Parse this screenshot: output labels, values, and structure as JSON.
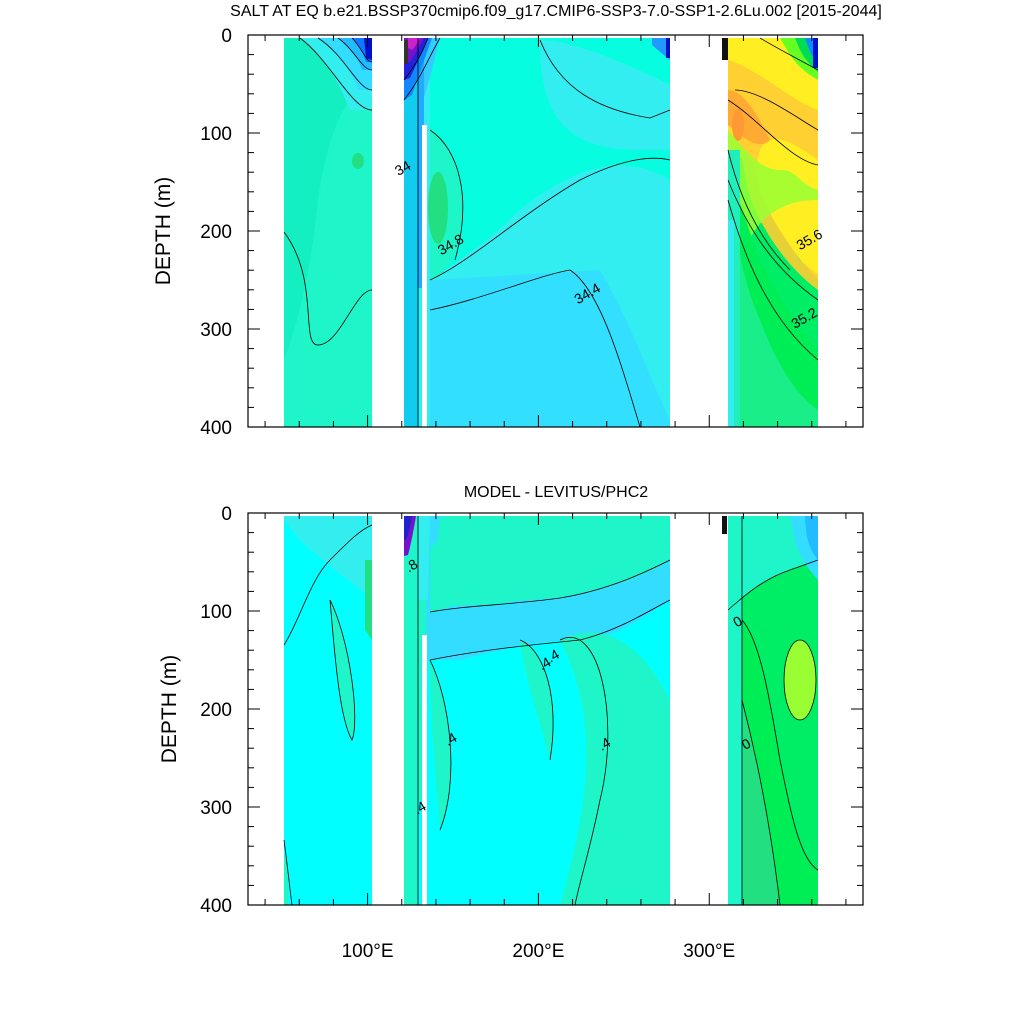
{
  "chart_data": [
    {
      "type": "contour",
      "title": "SALT AT EQ b.e21.BSSP370cmip6.f09_g17.CMIP6-SSP3-7.0-SSP1-2.6Lu.002 [2015-2044]",
      "ylabel": "DEPTH (m)",
      "xlabel": "",
      "xlim": [
        30,
        390
      ],
      "ylim": [
        400,
        0
      ],
      "y_ticks": [
        "0",
        "100",
        "200",
        "300",
        "400"
      ],
      "x_ticks": [
        100,
        200,
        300
      ],
      "x_tick_labels": [
        "",
        "",
        ""
      ],
      "contour_labels": [
        {
          "text": "34",
          "x": 122,
          "y": 140
        },
        {
          "text": "34.8",
          "x": 150,
          "y": 218
        },
        {
          "text": "34.4",
          "x": 230,
          "y": 268
        },
        {
          "text": "35.6",
          "x": 360,
          "y": 213
        },
        {
          "text": "35.2",
          "x": 357,
          "y": 293
        }
      ]
    },
    {
      "type": "contour",
      "title": "MODEL - LEVITUS/PHC2",
      "ylabel": "DEPTH (m)",
      "xlabel": "",
      "xlim": [
        30,
        390
      ],
      "ylim": [
        400,
        0
      ],
      "y_ticks": [
        "0",
        "100",
        "200",
        "300",
        "400"
      ],
      "x_ticks": [
        100,
        200,
        300
      ],
      "x_tick_labels": [
        "100°E",
        "200°E",
        "300°E"
      ],
      "contour_labels": [
        {
          "text": ".8",
          "x": 127,
          "y": 58
        },
        {
          "text": ".4",
          "x": 210,
          "y": 150
        },
        {
          "text": ".4",
          "x": 205,
          "y": 158
        },
        {
          "text": ".4",
          "x": 150,
          "y": 235
        },
        {
          "text": ".4",
          "x": 240,
          "y": 240
        },
        {
          "text": ".4",
          "x": 132,
          "y": 305
        },
        {
          "text": "0",
          "x": 318,
          "y": 115
        },
        {
          "text": "0",
          "x": 323,
          "y": 240
        }
      ]
    }
  ]
}
